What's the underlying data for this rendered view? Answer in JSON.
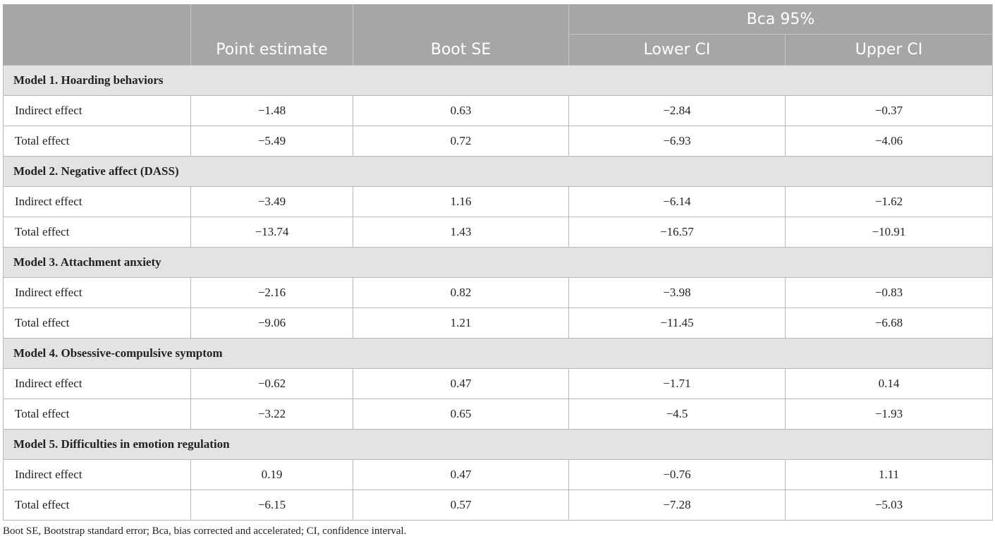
{
  "table": {
    "header": {
      "group_label": "Bca 95%",
      "columns": [
        "",
        "Point estimate",
        "Boot SE",
        "Lower CI",
        "Upper CI"
      ]
    },
    "sections": [
      {
        "title": "Model 1. Hoarding behaviors",
        "rows": [
          {
            "label": "Indirect effect",
            "point": "−1.48",
            "se": "0.63",
            "lower": "−2.84",
            "upper": "−0.37"
          },
          {
            "label": "Total effect",
            "point": "−5.49",
            "se": "0.72",
            "lower": "−6.93",
            "upper": "−4.06"
          }
        ]
      },
      {
        "title": "Model 2. Negative affect (DASS)",
        "rows": [
          {
            "label": "Indirect effect",
            "point": "−3.49",
            "se": "1.16",
            "lower": "−6.14",
            "upper": "−1.62"
          },
          {
            "label": "Total effect",
            "point": "−13.74",
            "se": "1.43",
            "lower": "−16.57",
            "upper": "−10.91"
          }
        ]
      },
      {
        "title": "Model 3. Attachment anxiety",
        "rows": [
          {
            "label": "Indirect effect",
            "point": "−2.16",
            "se": "0.82",
            "lower": "−3.98",
            "upper": "−0.83"
          },
          {
            "label": "Total effect",
            "point": "−9.06",
            "se": "1.21",
            "lower": "−11.45",
            "upper": "−6.68"
          }
        ]
      },
      {
        "title": "Model 4. Obsessive-compulsive symptom",
        "rows": [
          {
            "label": "Indirect effect",
            "point": "−0.62",
            "se": "0.47",
            "lower": "−1.71",
            "upper": "0.14"
          },
          {
            "label": "Total effect",
            "point": "−3.22",
            "se": "0.65",
            "lower": "−4.5",
            "upper": "−1.93"
          }
        ]
      },
      {
        "title": "Model 5. Difficulties in emotion regulation",
        "rows": [
          {
            "label": "Indirect effect",
            "point": "0.19",
            "se": "0.47",
            "lower": "−0.76",
            "upper": "1.11"
          },
          {
            "label": "Total effect",
            "point": "−6.15",
            "se": "0.57",
            "lower": "−7.28",
            "upper": "−5.03"
          }
        ]
      }
    ]
  },
  "footnote": "Boot SE, Bootstrap standard error; Bca, bias corrected and accelerated; CI, confidence interval."
}
